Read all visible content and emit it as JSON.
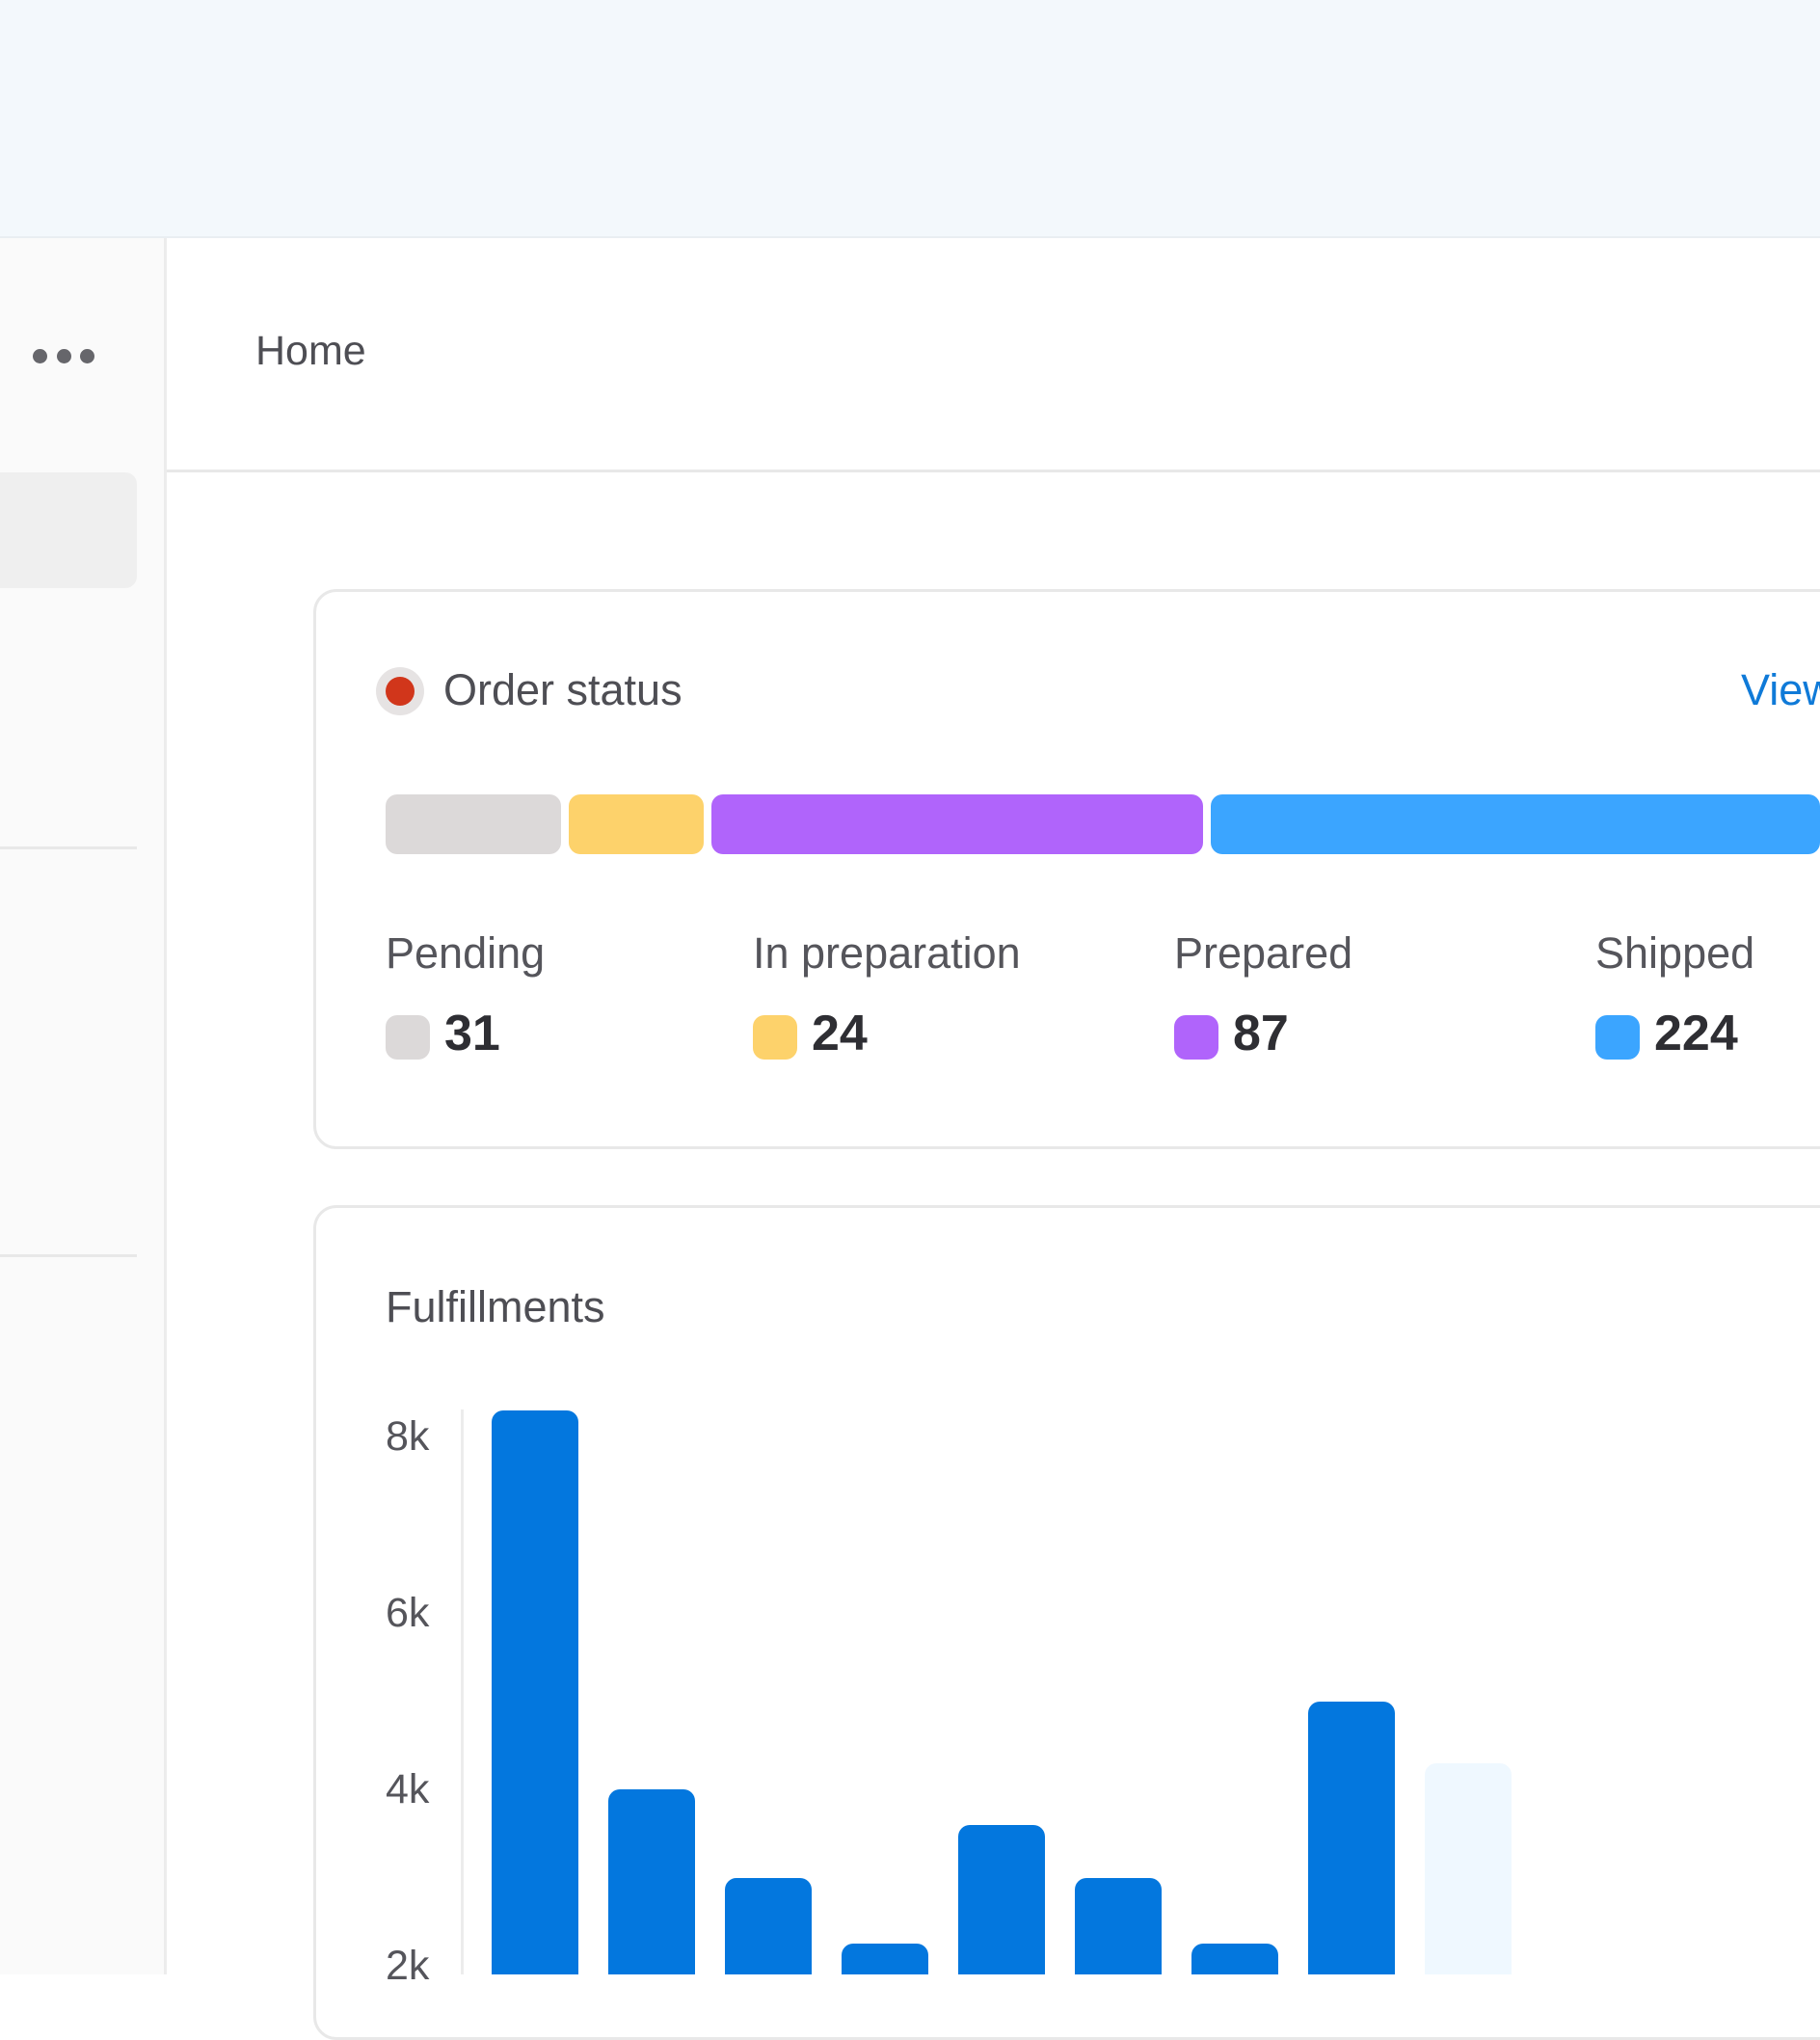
{
  "header": {
    "breadcrumb": "Home"
  },
  "sidebar": {
    "more_icon": "more-horizontal-icon"
  },
  "order_status": {
    "title": "Order status",
    "indicator_color": "#d1361b",
    "view_link": "View",
    "segments": [
      {
        "name": "Pending",
        "value": 31,
        "color": "#dcd9d9"
      },
      {
        "name": "In preparation",
        "value": 24,
        "color": "#fdd26b"
      },
      {
        "name": "Prepared",
        "value": 87,
        "color": "#b064fb"
      },
      {
        "name": "Shipped",
        "value": 224,
        "color": "#3ba5ff"
      }
    ],
    "stats": [
      {
        "label": "Pending",
        "value": "31",
        "color": "#dcd9d9"
      },
      {
        "label": "In preparation",
        "value": "24",
        "color": "#fdd26b"
      },
      {
        "label": "Prepared",
        "value": "87",
        "color": "#b064fb"
      },
      {
        "label": "Shipped",
        "value": "224",
        "color": "#3ba5ff"
      }
    ]
  },
  "fulfillments": {
    "title": "Fulfillments",
    "chart_data": {
      "type": "bar",
      "title": "Fulfillments",
      "y_ticks": [
        "8k",
        "6k",
        "4k",
        "2k"
      ],
      "ylim": [
        0,
        8400
      ],
      "values": [
        8300,
        4000,
        3000,
        2250,
        3600,
        3000,
        2250,
        5000,
        4300
      ],
      "bar_colors": [
        "#0377de",
        "#0377de",
        "#0377de",
        "#0377de",
        "#0377de",
        "#0377de",
        "#0377de",
        "#0377de",
        "#eff8ff"
      ]
    }
  }
}
